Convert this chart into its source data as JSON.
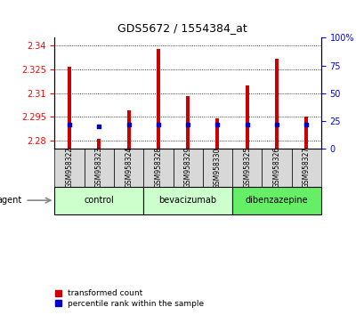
{
  "title": "GDS5672 / 1554384_at",
  "samples": [
    "GSM958322",
    "GSM958323",
    "GSM958324",
    "GSM958328",
    "GSM958329",
    "GSM958330",
    "GSM958325",
    "GSM958326",
    "GSM958327"
  ],
  "group_defs": [
    {
      "label": "control",
      "color": "#ccffcc",
      "start": 0,
      "end": 2
    },
    {
      "label": "bevacizumab",
      "color": "#ccffcc",
      "start": 3,
      "end": 5
    },
    {
      "label": "dibenzazepine",
      "color": "#66ee66",
      "start": 6,
      "end": 8
    }
  ],
  "transformed_count": [
    2.327,
    2.281,
    2.299,
    2.338,
    2.308,
    2.294,
    2.315,
    2.332,
    2.295
  ],
  "percentile_rank": [
    22,
    20,
    22,
    22,
    22,
    22,
    22,
    22,
    22
  ],
  "ylim_left": [
    2.275,
    2.345
  ],
  "ylim_right": [
    0,
    100
  ],
  "yticks_left": [
    2.28,
    2.295,
    2.31,
    2.325,
    2.34
  ],
  "yticks_right": [
    0,
    25,
    50,
    75,
    100
  ],
  "bar_color": "#cc0000",
  "dot_color": "#0000cc",
  "background_color": "#ffffff",
  "bar_bottom": 2.275,
  "agent_label": "agent",
  "legend_items": [
    {
      "label": "transformed count",
      "color": "#cc0000"
    },
    {
      "label": "percentile rank within the sample",
      "color": "#0000cc"
    }
  ],
  "plot_bg": "#f0f0f0",
  "cell_bg": "#d8d8d8"
}
